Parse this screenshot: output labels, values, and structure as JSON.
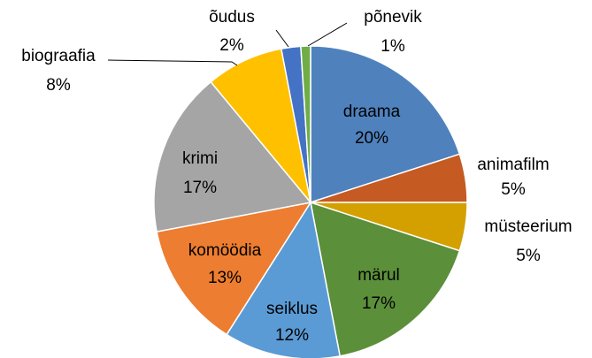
{
  "chart_data": {
    "type": "pie",
    "categories": [
      "draama",
      "animafilm",
      "müsteerium",
      "märul",
      "seiklus",
      "komöödia",
      "krimi",
      "biograafia",
      "õudus",
      "põnevik"
    ],
    "values": [
      20,
      5,
      5,
      17,
      12,
      13,
      17,
      8,
      2,
      1
    ],
    "value_labels": [
      "20%",
      "5%",
      "5%",
      "17%",
      "12%",
      "13%",
      "17%",
      "8%",
      "2%",
      "1%"
    ],
    "colors": [
      "#4f81bd",
      "#c55a22",
      "#d4a000",
      "#5b8f3a",
      "#5b9bd5",
      "#ed7d31",
      "#a5a5a5",
      "#ffc000",
      "#4472c4",
      "#70ad47"
    ]
  }
}
